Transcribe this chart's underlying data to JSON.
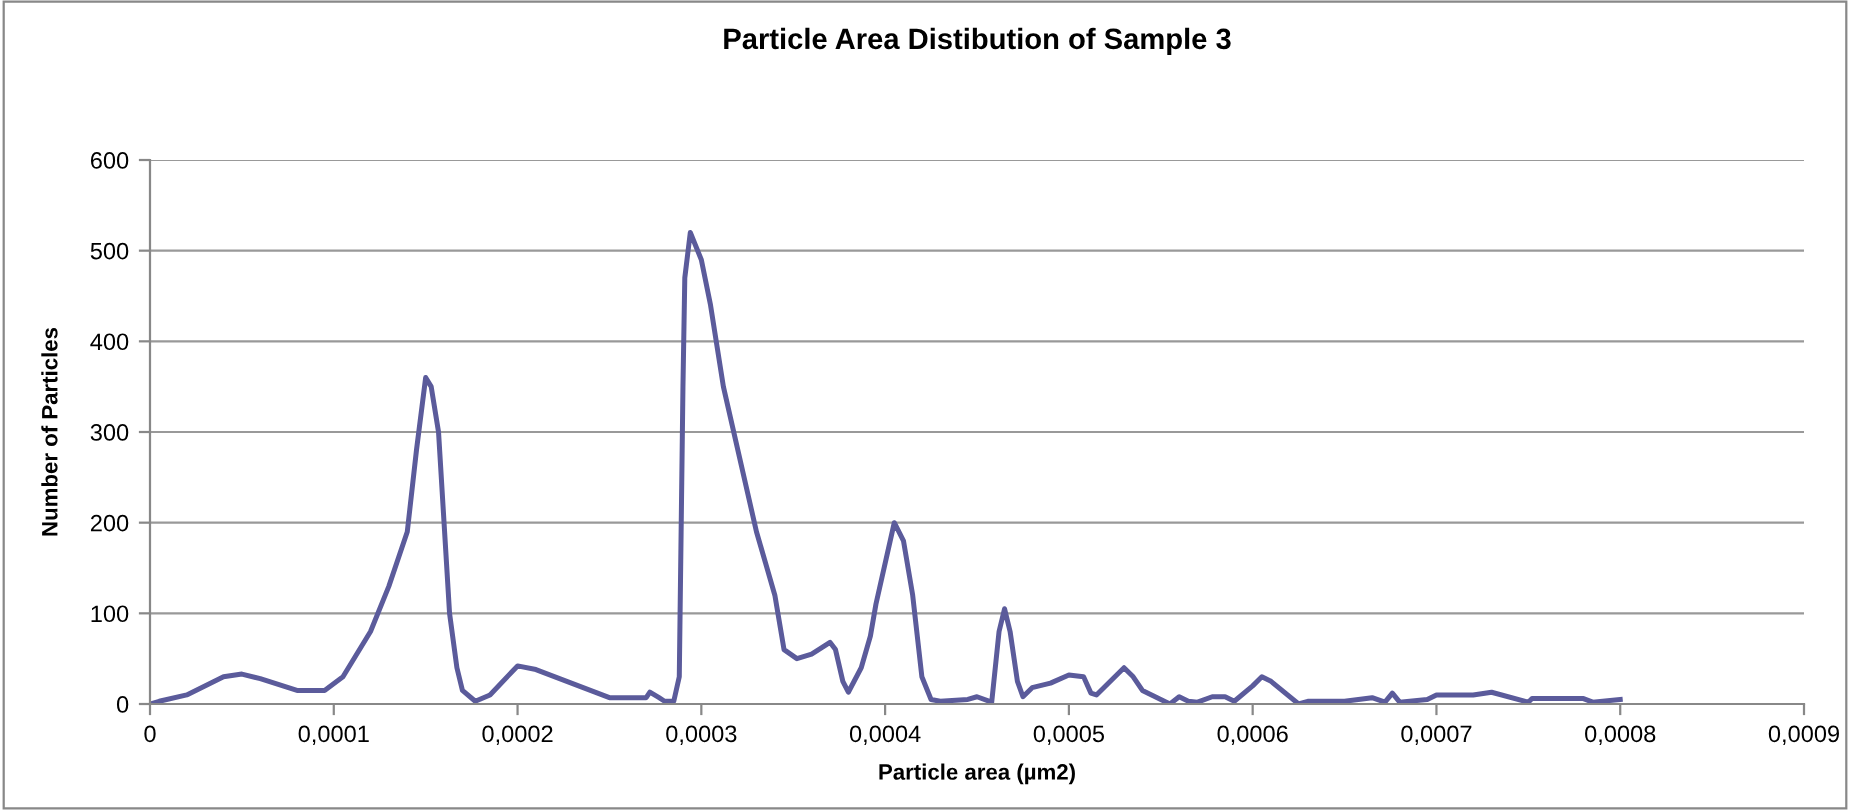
{
  "chart_data": {
    "type": "line",
    "title": "Particle Area Distibution of Sample 3",
    "xlabel": "Particle area (µm2)",
    "ylabel": "Number of Particles",
    "x": [
      0,
      5e-06,
      2e-05,
      4e-05,
      5e-05,
      6e-05,
      8e-05,
      9.5e-05,
      0.000105,
      0.00012,
      0.00013,
      0.00014,
      0.000145,
      0.00015,
      0.000153,
      0.000157,
      0.000163,
      0.000167,
      0.00017,
      0.000177,
      0.000185,
      0.0002,
      0.00021,
      0.00025,
      0.00027,
      0.000272,
      0.000277,
      0.00028,
      0.000285,
      0.000288,
      0.00029,
      0.000291,
      0.000294,
      0.0003,
      0.000305,
      0.000312,
      0.00033,
      0.00034,
      0.000345,
      0.000352,
      0.00036,
      0.00037,
      0.000373,
      0.000377,
      0.00038,
      0.000387,
      0.000392,
      0.000395,
      0.000405,
      0.00041,
      0.000415,
      0.00042,
      0.000425,
      0.00043,
      0.000445,
      0.00045,
      0.000458,
      0.000462,
      0.000465,
      0.000468,
      0.000472,
      0.000475,
      0.00048,
      0.00049,
      0.0005,
      0.000508,
      0.000512,
      0.000515,
      0.00053,
      0.000535,
      0.00054,
      0.00055,
      0.000555,
      0.00056,
      0.000565,
      0.00057,
      0.000578,
      0.000585,
      0.00059,
      0.0006,
      0.000605,
      0.00061,
      0.000625,
      0.00063,
      0.00065,
      0.000665,
      0.000672,
      0.000676,
      0.00068,
      0.000695,
      0.0007,
      0.00072,
      0.00073,
      0.00075,
      0.000752,
      0.00078,
      0.000785,
      0.0008
    ],
    "series": [
      {
        "color": "#5b5b9b",
        "values": [
          0,
          3,
          10,
          30,
          33,
          28,
          15,
          15,
          30,
          80,
          130,
          190,
          280,
          360,
          350,
          300,
          100,
          40,
          15,
          3,
          10,
          42,
          38,
          7,
          7,
          13,
          7,
          3,
          3,
          30,
          350,
          470,
          520,
          490,
          440,
          350,
          190,
          120,
          60,
          50,
          55,
          68,
          60,
          25,
          13,
          40,
          75,
          110,
          200,
          180,
          120,
          30,
          5,
          3,
          5,
          8,
          2,
          80,
          105,
          80,
          25,
          8,
          18,
          23,
          32,
          30,
          12,
          10,
          40,
          30,
          15,
          5,
          0,
          8,
          3,
          2,
          8,
          8,
          3,
          20,
          30,
          25,
          0,
          3,
          3,
          7,
          2,
          12,
          2,
          5,
          10,
          10,
          13,
          2,
          6,
          6,
          2,
          5
        ]
      }
    ],
    "xlim": [
      0,
      0.0009
    ],
    "xticks": [
      0,
      {
        "value": 0.0001,
        "label": "0,0001"
      },
      {
        "value": 0.0002,
        "label": "0,0002"
      },
      {
        "value": 0.0003,
        "label": "0,0003"
      },
      {
        "value": 0.0004,
        "label": "0,0004"
      },
      {
        "value": 0.0005,
        "label": "0,0005"
      },
      {
        "value": 0.0006,
        "label": "0,0006"
      },
      {
        "value": 0.0007,
        "label": "0,0007"
      },
      {
        "value": 0.0008,
        "label": "0,0008"
      },
      {
        "value": 0.0009,
        "label": "0,0009"
      }
    ],
    "ylim": [
      0,
      600
    ],
    "yticks": [
      0,
      100,
      200,
      300,
      400,
      500,
      600
    ],
    "grid": "y",
    "legend": false,
    "marker": "none",
    "line_style": "solid"
  }
}
